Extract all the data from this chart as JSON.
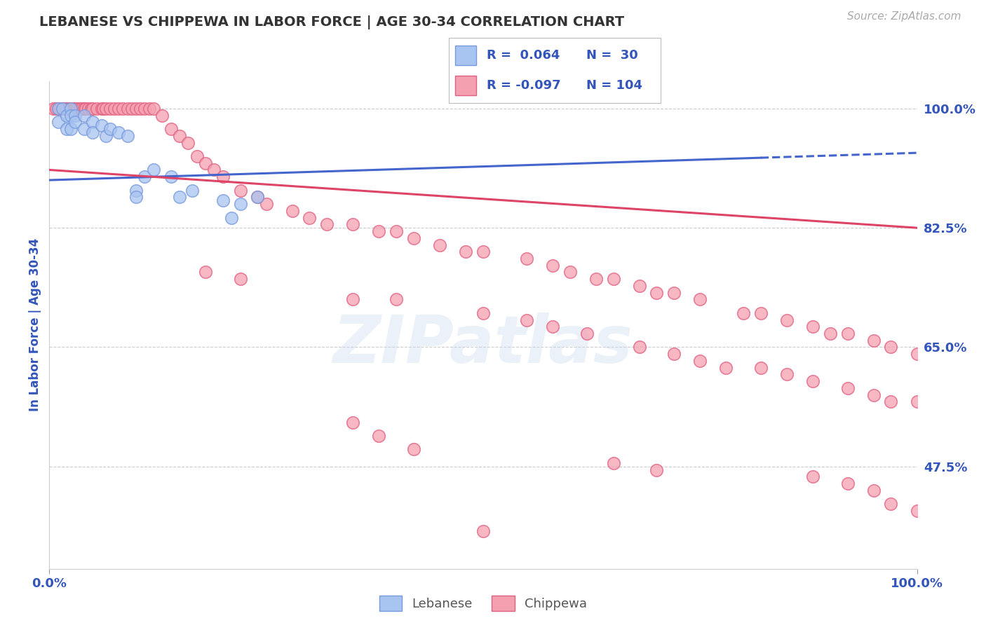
{
  "title": "LEBANESE VS CHIPPEWA IN LABOR FORCE | AGE 30-34 CORRELATION CHART",
  "source_text": "Source: ZipAtlas.com",
  "ylabel": "In Labor Force | Age 30-34",
  "xlim": [
    0,
    1.0
  ],
  "ylim": [
    0.325,
    1.04
  ],
  "yticks": [
    0.475,
    0.65,
    0.825,
    1.0
  ],
  "ytick_labels": [
    "47.5%",
    "65.0%",
    "82.5%",
    "100.0%"
  ],
  "legend_r1": "R =  0.064",
  "legend_n1": "N =  30",
  "legend_r2": "R = -0.097",
  "legend_n2": "N = 104",
  "blue_color": "#a8c4f0",
  "pink_color": "#f5a0b0",
  "blue_edge_color": "#7799dd",
  "pink_edge_color": "#e06080",
  "blue_line_color": "#4466cc",
  "pink_line_color": "#dd4466",
  "legend_text_color": "#3355bb",
  "grid_color": "#cccccc",
  "background_color": "#ffffff",
  "blue_trend_x0": 0.0,
  "blue_trend_y0": 0.895,
  "blue_trend_x1": 1.0,
  "blue_trend_y1": 0.935,
  "pink_trend_x0": 0.0,
  "pink_trend_y0": 0.91,
  "pink_trend_x1": 1.0,
  "pink_trend_y1": 0.825,
  "lebanese_x": [
    0.01,
    0.01,
    0.015,
    0.02,
    0.02,
    0.025,
    0.025,
    0.025,
    0.03,
    0.03,
    0.04,
    0.04,
    0.05,
    0.05,
    0.06,
    0.065,
    0.07,
    0.08,
    0.09,
    0.1,
    0.1,
    0.11,
    0.12,
    0.14,
    0.15,
    0.165,
    0.2,
    0.21,
    0.22,
    0.24
  ],
  "lebanese_y": [
    1.0,
    0.98,
    1.0,
    0.99,
    0.97,
    1.0,
    0.99,
    0.97,
    0.99,
    0.98,
    0.99,
    0.97,
    0.98,
    0.965,
    0.975,
    0.96,
    0.97,
    0.965,
    0.96,
    0.88,
    0.87,
    0.9,
    0.91,
    0.9,
    0.87,
    0.88,
    0.865,
    0.84,
    0.86,
    0.87
  ],
  "chippewa_x": [
    0.005,
    0.008,
    0.01,
    0.012,
    0.015,
    0.016,
    0.018,
    0.02,
    0.022,
    0.025,
    0.028,
    0.03,
    0.032,
    0.035,
    0.038,
    0.04,
    0.042,
    0.045,
    0.048,
    0.05,
    0.055,
    0.06,
    0.062,
    0.065,
    0.07,
    0.075,
    0.08,
    0.085,
    0.09,
    0.095,
    0.1,
    0.105,
    0.11,
    0.115,
    0.12,
    0.13,
    0.14,
    0.15,
    0.16,
    0.17,
    0.18,
    0.19,
    0.2,
    0.22,
    0.24,
    0.25,
    0.28,
    0.3,
    0.32,
    0.35,
    0.38,
    0.4,
    0.42,
    0.45,
    0.48,
    0.5,
    0.55,
    0.58,
    0.6,
    0.63,
    0.65,
    0.68,
    0.7,
    0.72,
    0.75,
    0.8,
    0.82,
    0.85,
    0.88,
    0.9,
    0.92,
    0.95,
    0.97,
    1.0,
    0.18,
    0.22,
    0.35,
    0.4,
    0.5,
    0.55,
    0.58,
    0.62,
    0.68,
    0.72,
    0.75,
    0.78,
    0.82,
    0.85,
    0.88,
    0.92,
    0.95,
    0.97,
    1.0,
    0.35,
    0.38,
    0.42,
    0.65,
    0.7,
    0.88,
    0.92,
    0.95,
    0.97,
    1.0,
    0.5
  ],
  "chippewa_y": [
    1.0,
    1.0,
    1.0,
    1.0,
    1.0,
    1.0,
    1.0,
    1.0,
    1.0,
    1.0,
    1.0,
    1.0,
    1.0,
    1.0,
    1.0,
    1.0,
    1.0,
    1.0,
    1.0,
    1.0,
    1.0,
    1.0,
    1.0,
    1.0,
    1.0,
    1.0,
    1.0,
    1.0,
    1.0,
    1.0,
    1.0,
    1.0,
    1.0,
    1.0,
    1.0,
    0.99,
    0.97,
    0.96,
    0.95,
    0.93,
    0.92,
    0.91,
    0.9,
    0.88,
    0.87,
    0.86,
    0.85,
    0.84,
    0.83,
    0.83,
    0.82,
    0.82,
    0.81,
    0.8,
    0.79,
    0.79,
    0.78,
    0.77,
    0.76,
    0.75,
    0.75,
    0.74,
    0.73,
    0.73,
    0.72,
    0.7,
    0.7,
    0.69,
    0.68,
    0.67,
    0.67,
    0.66,
    0.65,
    0.64,
    0.76,
    0.75,
    0.72,
    0.72,
    0.7,
    0.69,
    0.68,
    0.67,
    0.65,
    0.64,
    0.63,
    0.62,
    0.62,
    0.61,
    0.6,
    0.59,
    0.58,
    0.57,
    0.57,
    0.54,
    0.52,
    0.5,
    0.48,
    0.47,
    0.46,
    0.45,
    0.44,
    0.42,
    0.41,
    0.38
  ]
}
